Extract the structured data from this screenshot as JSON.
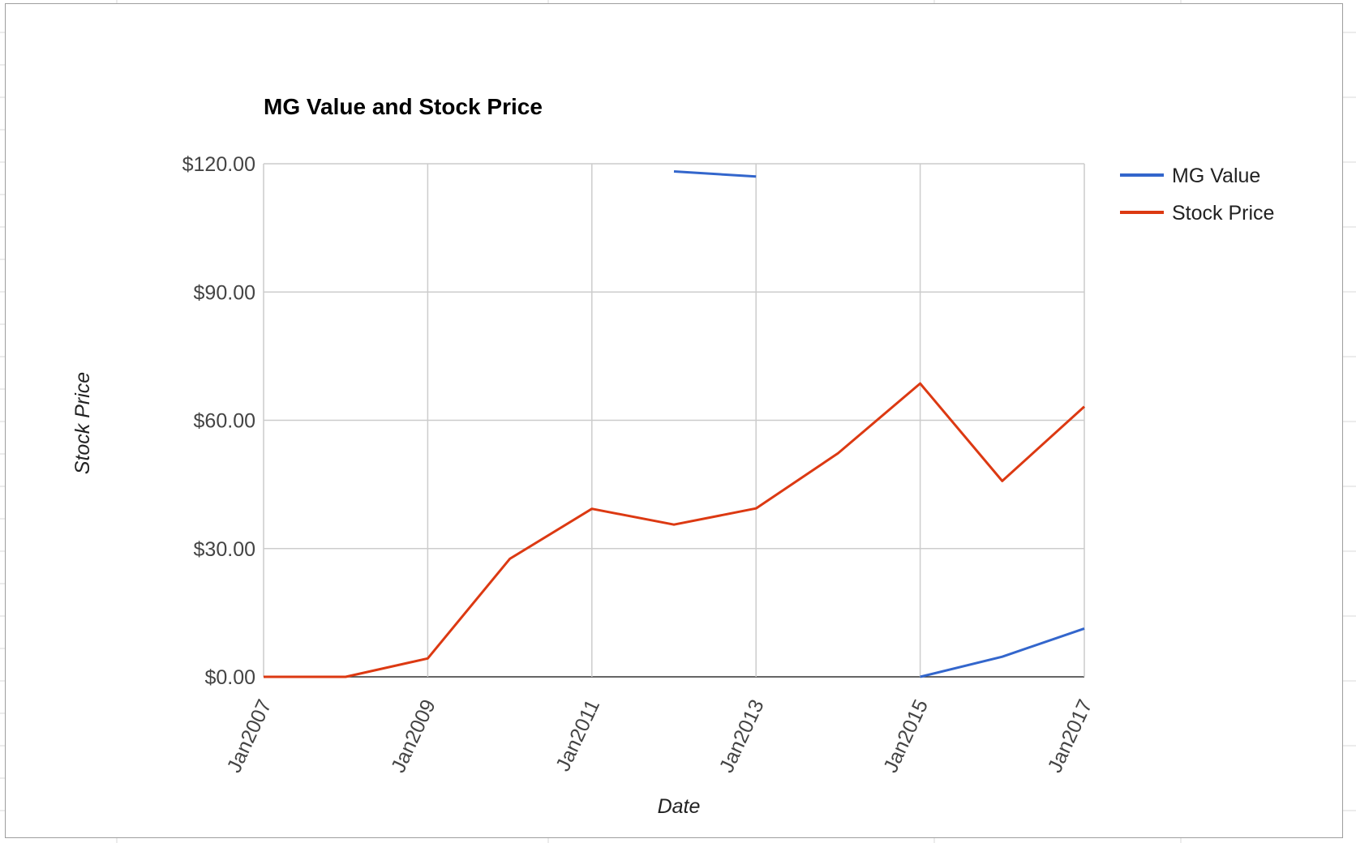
{
  "chart_data": {
    "type": "line",
    "title": "MG Value and Stock Price",
    "xlabel": "Date",
    "ylabel": "Stock Price",
    "x_ticks": [
      "Jan2007",
      "Jan2009",
      "Jan2011",
      "Jan2013",
      "Jan2015",
      "Jan2017"
    ],
    "x": [
      "Jan2007",
      "Jan2008",
      "Jan2009",
      "Jan2010",
      "Jan2011",
      "Jan2012",
      "Jan2013",
      "Jan2014",
      "Jan2015",
      "Jan2016",
      "Jan2017"
    ],
    "y_ticks": [
      "$0.00",
      "$30.00",
      "$60.00",
      "$90.00",
      "$120.00"
    ],
    "ylim": [
      0,
      120
    ],
    "grid": true,
    "legend_position": "right",
    "series": [
      {
        "name": "MG Value",
        "color": "#3366cc",
        "values": [
          null,
          null,
          null,
          null,
          null,
          118.2,
          117,
          null,
          0,
          4.7,
          11.3
        ]
      },
      {
        "name": "Stock Price",
        "color": "#dc3912",
        "values": [
          0,
          0,
          4.3,
          27.6,
          39.3,
          35.6,
          39.4,
          52.3,
          68.6,
          45.8,
          63.2
        ]
      }
    ]
  }
}
